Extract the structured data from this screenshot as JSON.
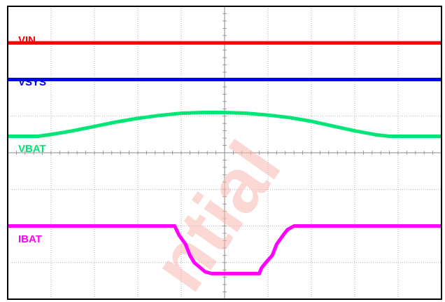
{
  "chart_data": {
    "type": "line",
    "title": "",
    "xlabel": "",
    "ylabel": "",
    "grid": true,
    "x_divisions": 10,
    "y_divisions": 8,
    "xlim": [
      0,
      10
    ],
    "ylim": [
      0,
      8
    ],
    "series": [
      {
        "name": "VIN",
        "color": "#ff0000",
        "x": [
          0,
          10
        ],
        "y": [
          7.0,
          7.0
        ]
      },
      {
        "name": "VSYS",
        "color": "#0000ff",
        "x": [
          0,
          10
        ],
        "y": [
          6.0,
          6.0
        ]
      },
      {
        "name": "VBAT",
        "color": "#00e676",
        "x": [
          0,
          0.7,
          1.0,
          1.5,
          2.0,
          2.5,
          3.0,
          3.5,
          4.0,
          4.5,
          5.0,
          5.5,
          6.0,
          6.5,
          7.0,
          7.5,
          8.0,
          8.5,
          8.8,
          10
        ],
        "y": [
          4.45,
          4.45,
          4.5,
          4.6,
          4.72,
          4.84,
          4.94,
          5.02,
          5.08,
          5.1,
          5.1,
          5.08,
          5.03,
          4.96,
          4.86,
          4.73,
          4.6,
          4.49,
          4.45,
          4.45
        ]
      },
      {
        "name": "IBAT",
        "color": "#ff00ff",
        "x": [
          0,
          3.85,
          3.95,
          4.1,
          4.2,
          4.3,
          4.45,
          4.55,
          4.7,
          5.8,
          5.85,
          5.95,
          6.1,
          6.2,
          6.35,
          6.45,
          6.6,
          10
        ],
        "y": [
          2.0,
          2.0,
          1.75,
          1.5,
          1.2,
          1.0,
          0.85,
          0.75,
          0.7,
          0.7,
          0.85,
          1.0,
          1.2,
          1.5,
          1.75,
          1.9,
          2.0,
          2.0
        ]
      }
    ]
  },
  "labels": {
    "vin": "VIN",
    "vsys": "VSYS",
    "vbat": "VBAT",
    "ibat": "IBAT"
  },
  "watermark": "ntial"
}
